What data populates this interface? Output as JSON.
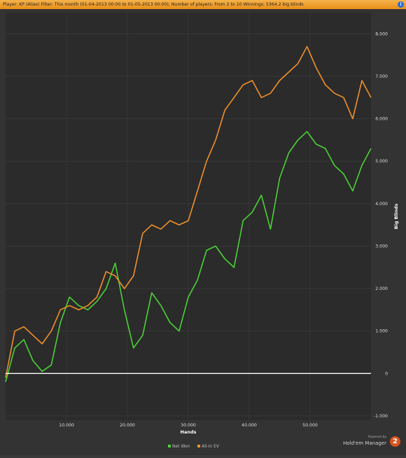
{
  "header": {
    "title": "Player:  KP (Alias) Filter:  This month (01-04-2013 00:00 to 01-05-2013 00:00); Number of players: From 2 to 10  Winnings:   5364.2 big blinds",
    "info_icon": "info-icon"
  },
  "branding": {
    "powered_by": "Powered by",
    "name": "Hold'em Manager",
    "logo_text": "2"
  },
  "chart_data": {
    "type": "line",
    "title": "",
    "xlabel": "Hands",
    "ylabel": "Big Blinds",
    "xlim": [
      0,
      60000
    ],
    "ylim": [
      -1100,
      8500
    ],
    "x_ticks": [
      10000,
      20000,
      30000,
      40000,
      50000
    ],
    "x_tick_labels": [
      "10.000",
      "20.000",
      "30.000",
      "40.000",
      "50.000"
    ],
    "y_ticks": [
      -1000,
      0,
      1000,
      2000,
      3000,
      4000,
      5000,
      6000,
      7000,
      8000
    ],
    "y_tick_labels": [
      "-1.000",
      "0",
      "1.000",
      "2.000",
      "3.000",
      "4.000",
      "5.000",
      "6.000",
      "7.000",
      "8.000"
    ],
    "y_axis_side": "right",
    "grid": true,
    "legend_position": "bottom-center",
    "zero_line_color": "#ffffff",
    "x": [
      0,
      1500,
      3000,
      4500,
      6000,
      7500,
      9000,
      10500,
      12000,
      13500,
      15000,
      16500,
      18000,
      19500,
      21000,
      22500,
      24000,
      25500,
      27000,
      28500,
      30000,
      31500,
      33000,
      34500,
      36000,
      37500,
      39000,
      40500,
      42000,
      43500,
      45000,
      46500,
      48000,
      49500,
      51000,
      52500,
      54000,
      55500,
      57000,
      58500,
      60000
    ],
    "series": [
      {
        "name": "Net Won",
        "color": "#4cd137",
        "values": [
          -200,
          600,
          800,
          300,
          50,
          200,
          1200,
          1800,
          1600,
          1500,
          1700,
          2000,
          2600,
          1500,
          600,
          900,
          1900,
          1600,
          1200,
          1000,
          1800,
          2200,
          2900,
          3000,
          2700,
          2500,
          3600,
          3800,
          4200,
          3400,
          4600,
          5200,
          5500,
          5700,
          5400,
          5300,
          4900,
          4700,
          4300,
          4900,
          5300
        ]
      },
      {
        "name": "All-In EV",
        "color": "#f0902a",
        "values": [
          -100,
          1000,
          1100,
          900,
          700,
          1000,
          1500,
          1600,
          1500,
          1600,
          1800,
          2400,
          2300,
          2000,
          2300,
          3300,
          3500,
          3400,
          3600,
          3500,
          3600,
          4300,
          5000,
          5500,
          6200,
          6500,
          6800,
          6900,
          6500,
          6600,
          6900,
          7100,
          7300,
          7700,
          7200,
          6800,
          6600,
          6500,
          6000,
          6900,
          6500
        ]
      }
    ]
  }
}
